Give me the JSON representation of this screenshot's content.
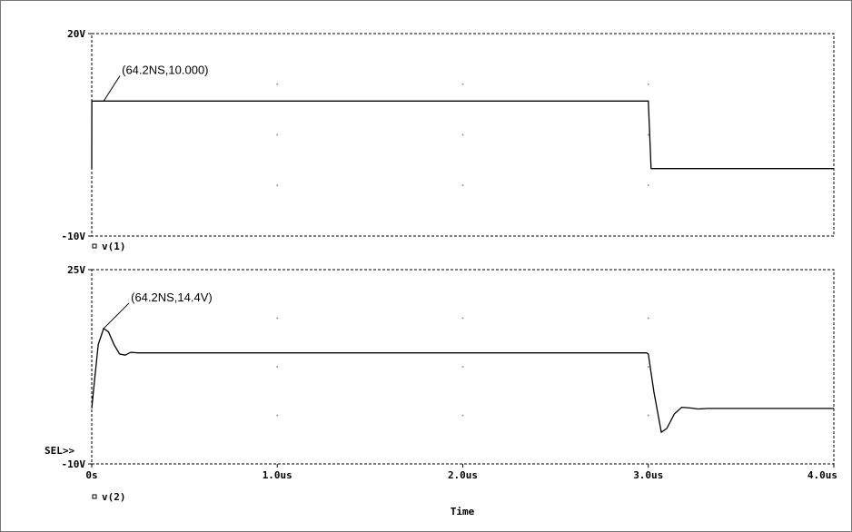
{
  "chart_data": [
    {
      "type": "line",
      "trace_label": "v(1)",
      "ylim": [
        -10,
        20
      ],
      "xlim": [
        0,
        4.0
      ],
      "y_ticks": [
        {
          "v": 20,
          "label": "20V"
        },
        {
          "v": -10,
          "label": "-10V"
        }
      ],
      "grid": true,
      "series": [
        {
          "name": "v(1)",
          "x": [
            0,
            0.0005,
            0.002,
            0.02,
            0.0642,
            1.0,
            2.0,
            2.995,
            3.0,
            3.015,
            3.1,
            4.0
          ],
          "y": [
            0,
            10,
            10,
            10,
            10,
            10,
            10,
            10,
            10,
            0,
            0,
            0
          ]
        }
      ],
      "annotations": [
        {
          "x": 0.0642,
          "y": 10,
          "text": "(64.2NS,10.000)"
        }
      ]
    },
    {
      "type": "line",
      "trace_label": "v(2)",
      "ylim": [
        -10,
        25
      ],
      "xlim": [
        0,
        4.0
      ],
      "y_ticks": [
        {
          "v": 25,
          "label": "25V"
        },
        {
          "v": -10,
          "label": "-10V"
        }
      ],
      "x_ticks": [
        {
          "v": 0,
          "label": "0s"
        },
        {
          "v": 1,
          "label": "1.0us"
        },
        {
          "v": 2,
          "label": "2.0us"
        },
        {
          "v": 3,
          "label": "3.0us"
        },
        {
          "v": 4,
          "label": "4.0us"
        }
      ],
      "xlabel": "Time",
      "grid": true,
      "series": [
        {
          "name": "v(2)",
          "x": [
            0,
            0.015,
            0.035,
            0.0642,
            0.09,
            0.12,
            0.15,
            0.18,
            0.21,
            0.25,
            0.3,
            1.0,
            2.0,
            2.99,
            3.0,
            3.03,
            3.07,
            3.1,
            3.14,
            3.18,
            3.22,
            3.27,
            3.32,
            4.0
          ],
          "y": [
            0,
            5,
            11.5,
            14.4,
            13.8,
            11.5,
            9.8,
            9.6,
            10.1,
            10,
            10,
            10,
            10,
            10,
            9.8,
            3,
            -4.3,
            -3.6,
            -1,
            0.2,
            0.1,
            -0.1,
            0,
            0
          ]
        }
      ],
      "annotations": [
        {
          "x": 0.0642,
          "y": 14.4,
          "text": "(64.2NS,14.4V)"
        }
      ],
      "sel_label": "SEL>>"
    }
  ],
  "colors": {
    "trace": "#000000",
    "grid": "#888888",
    "frame": "#777777"
  }
}
